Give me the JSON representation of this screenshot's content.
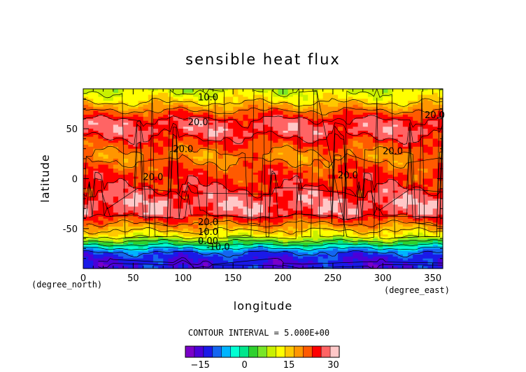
{
  "chart_data": {
    "type": "heatmap",
    "title": "sensible heat flux",
    "xlabel": "longitude",
    "ylabel": "latitude",
    "x_unit": "(degree_east)",
    "y_unit": "(degree_north)",
    "xlim": [
      0,
      360
    ],
    "ylim": [
      -90,
      90
    ],
    "x_ticks": [
      0,
      50,
      100,
      150,
      200,
      250,
      300,
      350
    ],
    "y_ticks": [
      -50,
      0,
      50
    ],
    "contour_interval_text": "CONTOUR INTERVAL = 5.000E+00",
    "contour_interval": 5.0,
    "colorbar": {
      "min": -20,
      "max": 32,
      "tick_values": [
        -15,
        0,
        15,
        30
      ],
      "colors": [
        "#7a00c8",
        "#4b00d8",
        "#1a1ae8",
        "#1466f0",
        "#00b4ff",
        "#00ffd2",
        "#00e68c",
        "#2ed02e",
        "#78e628",
        "#c8f000",
        "#ffff00",
        "#ffc800",
        "#ff9600",
        "#ff5a00",
        "#ff0000",
        "#ff6464",
        "#ffc8c8"
      ]
    },
    "latitude_profile": [
      {
        "lat": 88,
        "value": 10
      },
      {
        "lat": 82,
        "value": 12
      },
      {
        "lat": 76,
        "value": 15
      },
      {
        "lat": 68,
        "value": 20
      },
      {
        "lat": 58,
        "value": 26
      },
      {
        "lat": 48,
        "value": 27
      },
      {
        "lat": 38,
        "value": 24
      },
      {
        "lat": 30,
        "value": 21
      },
      {
        "lat": 22,
        "value": 19
      },
      {
        "lat": 14,
        "value": 21
      },
      {
        "lat": 5,
        "value": 23
      },
      {
        "lat": -5,
        "value": 24
      },
      {
        "lat": -15,
        "value": 26
      },
      {
        "lat": -25,
        "value": 28
      },
      {
        "lat": -35,
        "value": 27
      },
      {
        "lat": -42,
        "value": 22
      },
      {
        "lat": -48,
        "value": 18
      },
      {
        "lat": -52,
        "value": 15
      },
      {
        "lat": -57,
        "value": 12
      },
      {
        "lat": -61,
        "value": 7
      },
      {
        "lat": -65,
        "value": 2
      },
      {
        "lat": -69,
        "value": -4
      },
      {
        "lat": -74,
        "value": -10
      },
      {
        "lat": -80,
        "value": -13
      },
      {
        "lat": -86,
        "value": -14
      },
      {
        "lat": -90,
        "value": -13
      }
    ],
    "contour_labels": [
      {
        "text": "10.0",
        "lon": 125,
        "lat": 82
      },
      {
        "text": "20.0",
        "lon": 352,
        "lat": 64
      },
      {
        "text": "20.0",
        "lon": 115,
        "lat": 57
      },
      {
        "text": "20.0",
        "lon": 100,
        "lat": 30
      },
      {
        "text": "20.0",
        "lon": 310,
        "lat": 28
      },
      {
        "text": "20.0",
        "lon": 70,
        "lat": 2
      },
      {
        "text": "20.0",
        "lon": 265,
        "lat": 4
      },
      {
        "text": "20.0",
        "lon": 125,
        "lat": -43
      },
      {
        "text": "10.0",
        "lon": 125,
        "lat": -53
      },
      {
        "text": "0.00",
        "lon": 125,
        "lat": -62
      },
      {
        "text": "-10.0",
        "lon": 135,
        "lat": -68
      }
    ]
  }
}
